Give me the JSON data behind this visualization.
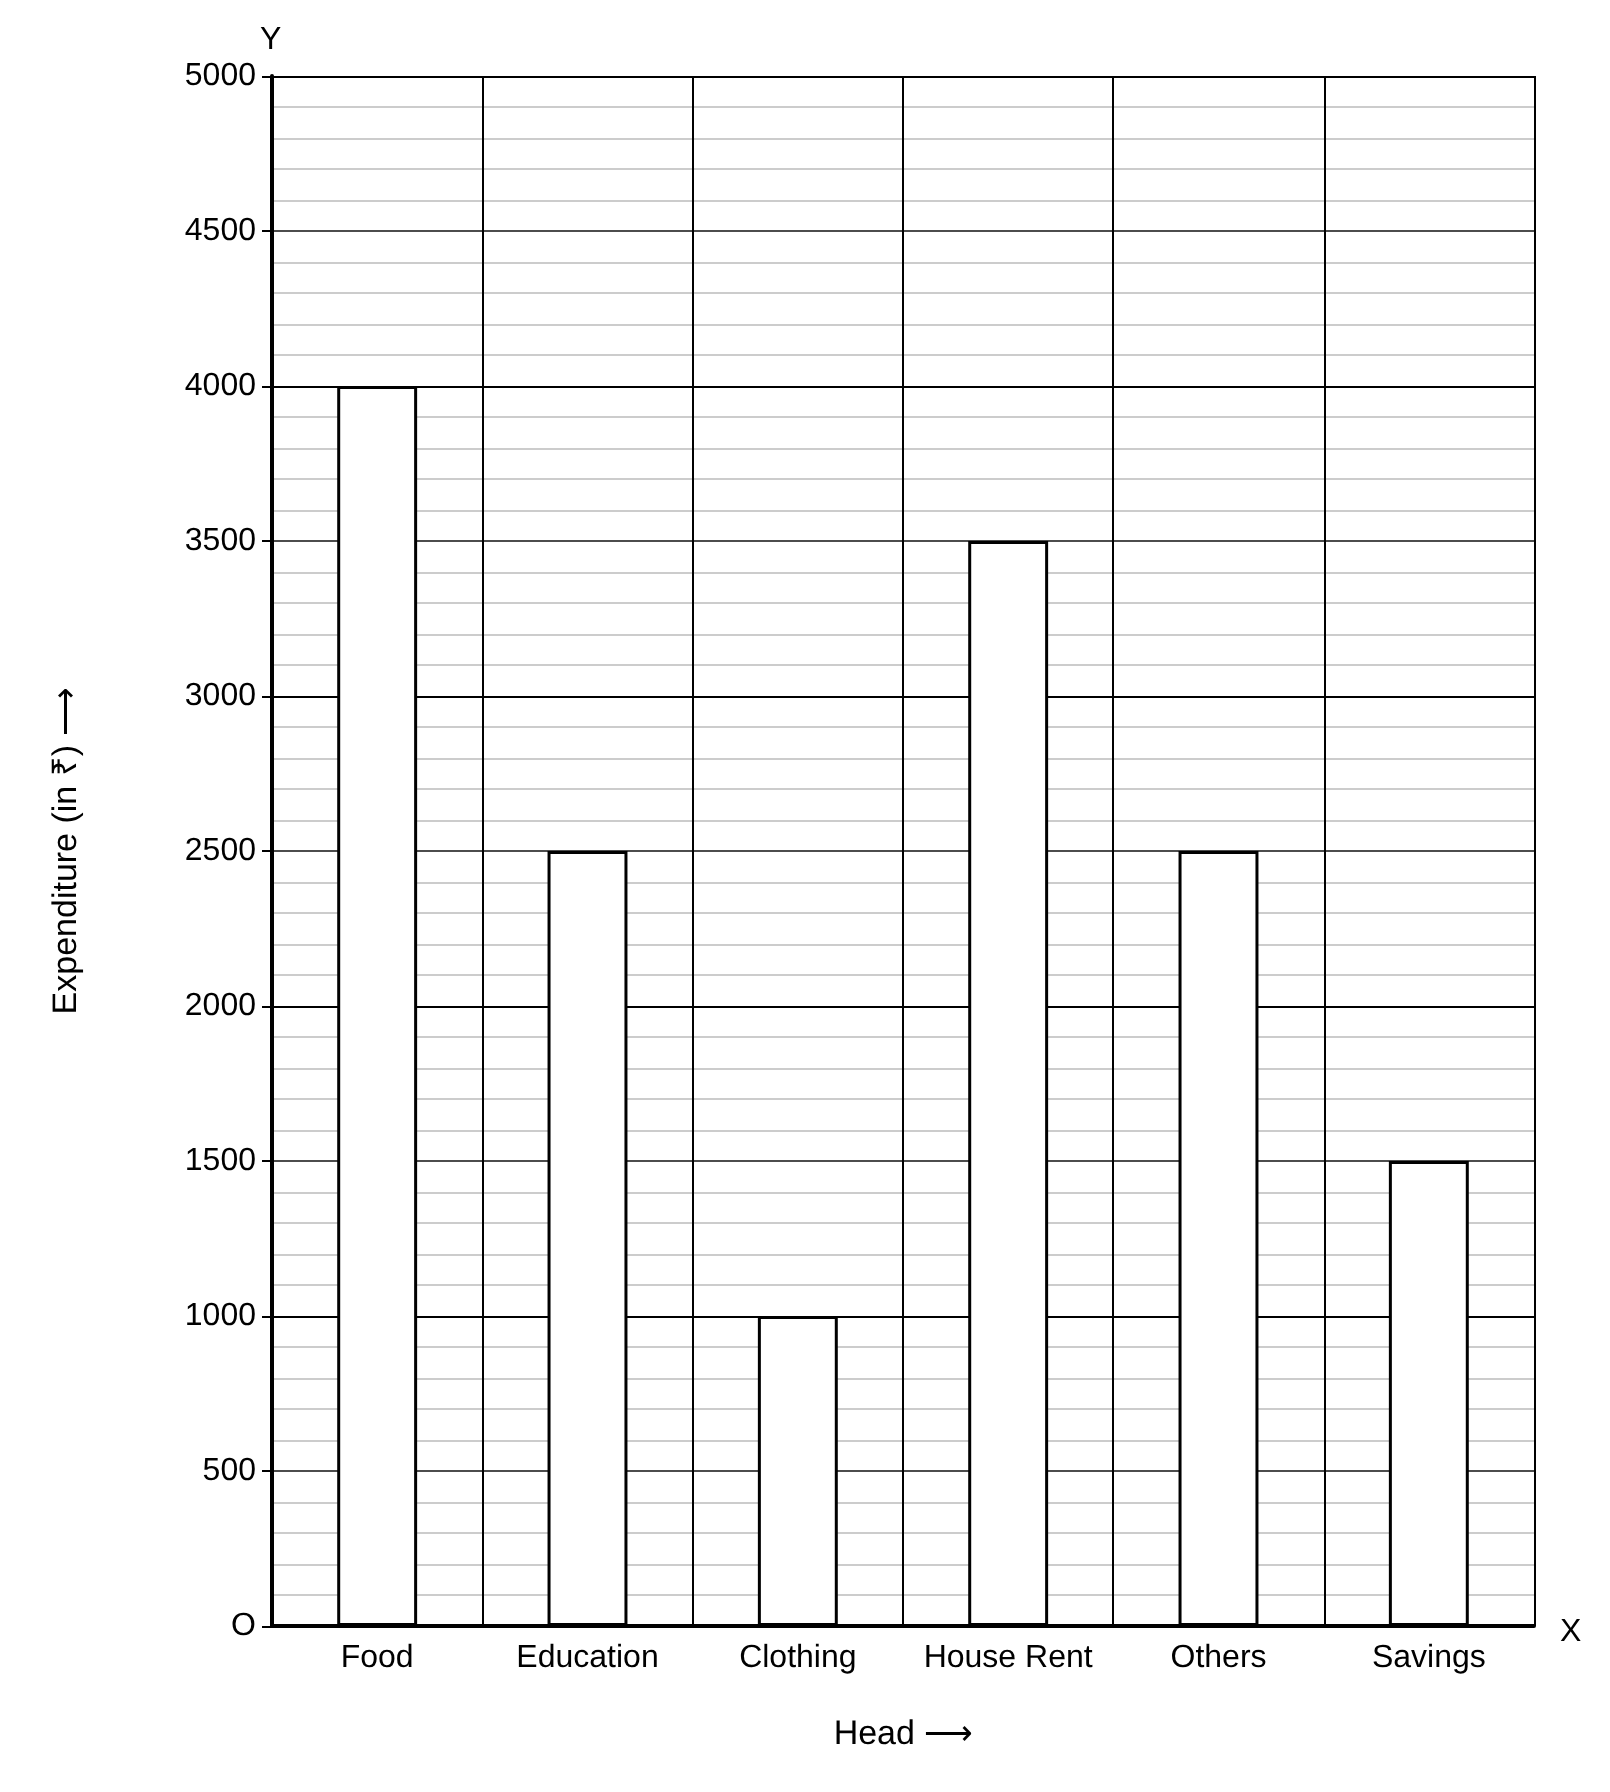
{
  "chart_data": {
    "type": "bar",
    "xlabel": "Head ⟶",
    "ylabel": "Expenditure (in ₹) ⟶",
    "categories": [
      "Food",
      "Education",
      "Clothing",
      "House Rent",
      "Others",
      "Savings"
    ],
    "values": [
      4000,
      2500,
      1000,
      3500,
      2500,
      1500
    ],
    "color": "#ffffff",
    "ylim": [
      0,
      5000
    ],
    "yticks": [
      {
        "value": 0,
        "label": "O"
      },
      500,
      1000,
      1500,
      2000,
      2500,
      3000,
      3500,
      4000,
      4500,
      5000
    ],
    "grid": true,
    "annotations": [
      "Y",
      "X"
    ]
  }
}
